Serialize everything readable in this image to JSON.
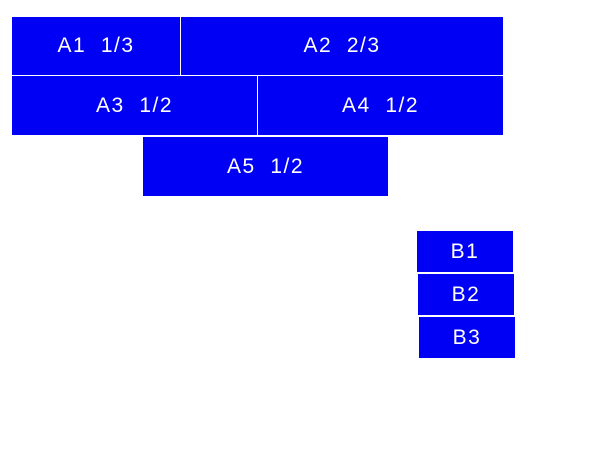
{
  "color": "#0000f5",
  "group_a": [
    {
      "label": "A1  1/3"
    },
    {
      "label": "A2  2/3"
    },
    {
      "label": "A3  1/2"
    },
    {
      "label": "A4  1/2"
    },
    {
      "label": "A5  1/2"
    }
  ],
  "group_b": [
    {
      "label": "B1"
    },
    {
      "label": "B2"
    },
    {
      "label": "B3"
    }
  ]
}
